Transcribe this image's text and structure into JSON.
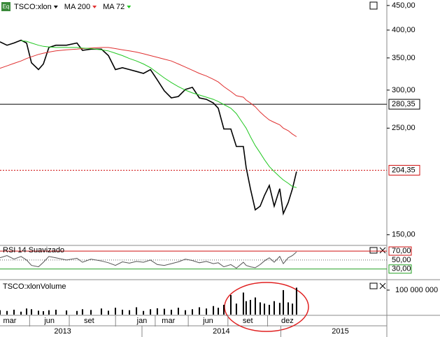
{
  "chart_data": [
    {
      "type": "line",
      "icon_label": "Eq",
      "log_scale": true,
      "x": [
        1.26,
        1.79,
        2.32,
        2.85,
        3.27,
        3.64,
        4.17,
        4.54,
        4.96,
        5.49,
        6.29,
        7.08,
        7.5,
        8.14,
        8.93,
        9.46,
        9.99,
        10.52,
        11.05,
        11.58,
        12.11,
        12.64,
        13.16,
        13.69,
        14.22,
        14.75,
        15.28,
        15.81,
        16.34,
        16.87,
        17.4,
        17.77,
        18.19,
        18.72,
        19.14,
        19.67,
        19.88,
        20.2,
        20.57,
        20.94,
        21.26,
        21.63,
        22,
        22.42,
        22.69,
        23.06,
        23.38,
        23.69
      ],
      "series": [
        {
          "name": "TSCO:xlon",
          "color": "#000000",
          "values": [
            378,
            372,
            376,
            381,
            376,
            342,
            331,
            340,
            368,
            372,
            372,
            376,
            363,
            365,
            365,
            354,
            331,
            334,
            331,
            328,
            325,
            331,
            315,
            299,
            289,
            291,
            301,
            304,
            289,
            287,
            282,
            275,
            249,
            249,
            229,
            229,
            207,
            187,
            169,
            172,
            181,
            190,
            172,
            187,
            166,
            175,
            187,
            203
          ]
        },
        {
          "name": "MA 200",
          "color": "#e03030",
          "values": [
            333,
            337,
            341,
            345,
            349,
            352,
            356,
            358,
            360,
            362,
            364,
            365,
            366,
            367,
            368,
            368,
            366,
            364,
            362,
            360,
            357,
            354,
            351,
            348,
            345,
            340,
            335,
            330,
            325,
            321,
            316,
            312,
            305,
            298,
            292,
            290,
            286,
            282,
            277,
            270,
            265,
            260,
            257,
            254,
            250,
            247,
            243,
            240
          ]
        },
        {
          "name": "MA 72",
          "color": "#22c822",
          "values": [
            null,
            null,
            null,
            380,
            379,
            376,
            372,
            370,
            369,
            368,
            368,
            368,
            367,
            366,
            364,
            362,
            358,
            354,
            349,
            345,
            340,
            334,
            326,
            318,
            311,
            305,
            300,
            296,
            293,
            290,
            287,
            284,
            280,
            275,
            268,
            255,
            250,
            240,
            230,
            222,
            215,
            208,
            203,
            198,
            195,
            192,
            189,
            188
          ]
        }
      ],
      "xlim": [
        1.26,
        30.52
      ],
      "ylim": [
        143,
        462
      ],
      "yticks": [
        {
          "value": 450,
          "label": "450,00"
        },
        {
          "value": 400,
          "label": "400,00"
        },
        {
          "value": 350,
          "label": "350,00"
        },
        {
          "value": 300,
          "label": "300,00"
        },
        {
          "value": 250,
          "label": "250,00"
        },
        {
          "value": 150,
          "label": "150,00"
        }
      ],
      "hlines": [
        {
          "value": 280.35,
          "label": "280,35",
          "color": "#000000",
          "dotted": false
        },
        {
          "value": 204.35,
          "label": "204,35",
          "color": "#d01010",
          "dotted": true
        }
      ]
    },
    {
      "type": "line",
      "title": "RSI 14 Suavizado",
      "x": [
        1.26,
        1.79,
        2.32,
        2.85,
        3.27,
        3.64,
        4.17,
        4.54,
        4.96,
        5.49,
        6.29,
        7.08,
        7.5,
        8.14,
        8.93,
        9.46,
        9.99,
        10.52,
        11.05,
        11.58,
        12.11,
        12.64,
        13.16,
        13.69,
        14.22,
        14.75,
        15.28,
        15.81,
        16.34,
        16.87,
        17.4,
        17.77,
        18.19,
        18.72,
        19.14,
        19.67,
        19.88,
        20.2,
        20.57,
        20.94,
        21.26,
        21.63,
        22,
        22.42,
        22.69,
        23.06,
        23.38,
        23.69
      ],
      "series": [
        {
          "name": "RSI",
          "color": "#555555",
          "values": [
            55,
            60,
            52,
            58,
            50,
            38,
            35,
            45,
            58,
            55,
            50,
            54,
            45,
            52,
            48,
            44,
            38,
            46,
            43,
            47,
            45,
            50,
            40,
            38,
            42,
            46,
            52,
            49,
            44,
            47,
            42,
            44,
            35,
            40,
            32,
            45,
            38,
            35,
            33,
            40,
            48,
            55,
            45,
            58,
            42,
            55,
            60,
            68
          ]
        }
      ],
      "xlim": [
        1.26,
        30.52
      ],
      "ylim": [
        11,
        81
      ],
      "yticks": [
        {
          "value": 70,
          "label": "70,00",
          "color": "#d01010"
        },
        {
          "value": 50,
          "label": "50,00",
          "color": null
        },
        {
          "value": 30,
          "label": "30,00",
          "color": "#22a022"
        }
      ]
    },
    {
      "type": "bar",
      "title": "TSCO:xlonVolume",
      "color": "#000000",
      "x": [
        1.26,
        1.79,
        2.32,
        2.85,
        3.27,
        3.64,
        4.17,
        4.54,
        4.96,
        5.49,
        6.29,
        7.08,
        7.5,
        8.14,
        8.93,
        9.46,
        9.99,
        10.52,
        11.05,
        11.58,
        12.11,
        12.64,
        13.16,
        13.69,
        14.22,
        14.75,
        15.28,
        15.81,
        16.34,
        16.87,
        17.4,
        17.77,
        18.19,
        18.72,
        19.14,
        19.67,
        19.88,
        20.2,
        20.57,
        20.94,
        21.26,
        21.63,
        22,
        22.42,
        22.69,
        23.06,
        23.38,
        23.69
      ],
      "values": [
        18000000,
        15000000,
        20000000,
        12000000,
        25000000,
        22000000,
        16000000,
        14000000,
        18000000,
        20000000,
        17000000,
        15000000,
        22000000,
        19000000,
        25000000,
        16000000,
        28000000,
        20000000,
        18000000,
        30000000,
        15000000,
        22000000,
        26000000,
        24000000,
        20000000,
        28000000,
        18000000,
        22000000,
        30000000,
        25000000,
        35000000,
        28000000,
        40000000,
        80000000,
        45000000,
        90000000,
        55000000,
        60000000,
        70000000,
        50000000,
        45000000,
        40000000,
        55000000,
        48000000,
        100000000,
        50000000,
        45000000,
        110000000
      ],
      "xlim": [
        1.26,
        30.52
      ],
      "ylim": [
        0,
        134000000
      ],
      "yticks": [
        {
          "value": 100000000,
          "label": "100 000 000"
        }
      ],
      "xticks": [
        {
          "value": 2,
          "label": "mar"
        },
        {
          "value": 5,
          "label": "jun"
        },
        {
          "value": 8,
          "label": "set"
        },
        {
          "value": 12,
          "label": "jan"
        },
        {
          "value": 14,
          "label": "mar"
        },
        {
          "value": 17,
          "label": "jun"
        },
        {
          "value": 20,
          "label": "set"
        },
        {
          "value": 23,
          "label": "dez"
        }
      ],
      "year_ticks": [
        {
          "value": 6,
          "label": "2013"
        },
        {
          "value": 18,
          "label": "2014"
        },
        {
          "value": 27,
          "label": "2015"
        }
      ]
    }
  ]
}
